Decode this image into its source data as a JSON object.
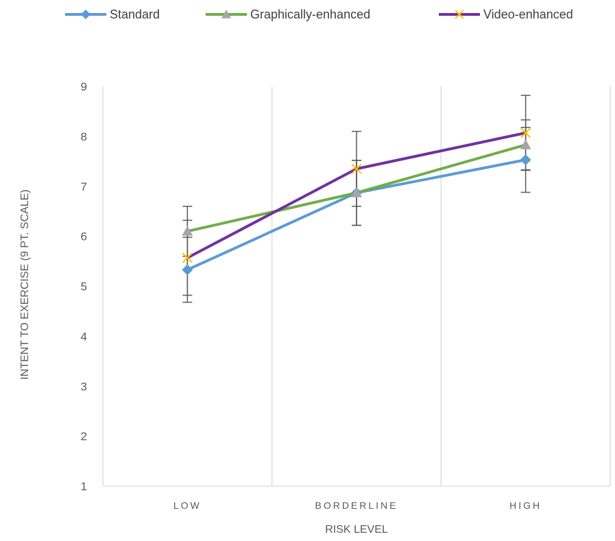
{
  "chart_data": {
    "type": "line",
    "categories": [
      "LOW",
      "BORDERLINE",
      "HIGH"
    ],
    "ylabel": "INTENT TO EXERCISE (9 PT.  SCALE)",
    "xlabel": "RISK LEVEL",
    "ylim": [
      1,
      9
    ],
    "yticks": [
      "1",
      "2",
      "3",
      "4",
      "5",
      "6",
      "7",
      "8",
      "9"
    ],
    "grid": "vertical",
    "legend_position": "top",
    "series": [
      {
        "name": "Standard",
        "color": "#5b9bd5",
        "marker": "diamond",
        "values": [
          5.33,
          6.87,
          7.53
        ],
        "error": [
          0.65,
          0.65,
          0.65
        ]
      },
      {
        "name": "Graphically-enhanced",
        "color": "#70ad47",
        "marker": "triangle",
        "marker_color": "#a5a5a5",
        "values": [
          6.1,
          6.87,
          7.83
        ],
        "error": [
          0.5,
          0.65,
          0.5
        ]
      },
      {
        "name": "Video-enhanced",
        "color": "#7030a0",
        "marker": "x",
        "marker_color": "#ffc000",
        "values": [
          5.57,
          7.35,
          8.07
        ],
        "error": [
          0.75,
          0.75,
          0.75
        ]
      }
    ]
  }
}
